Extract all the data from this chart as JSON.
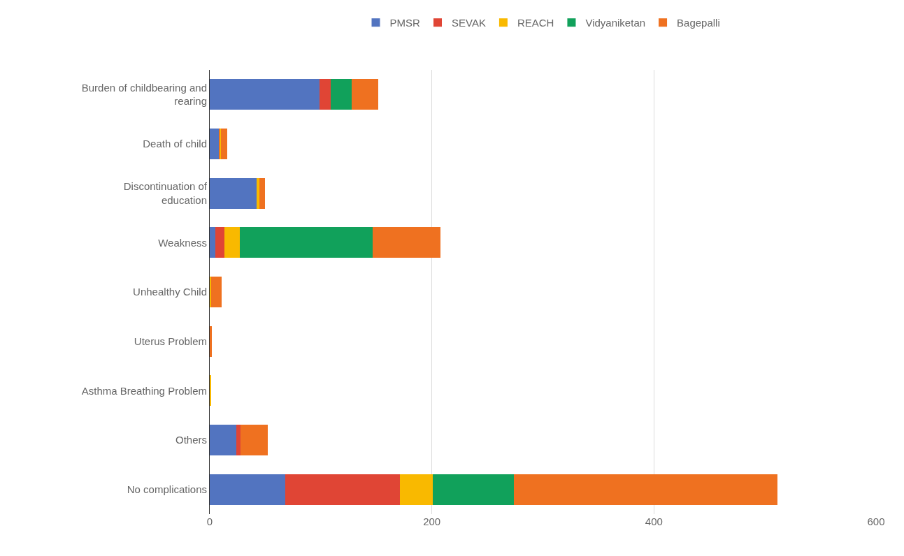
{
  "chart_data": {
    "type": "bar",
    "orientation": "horizontal",
    "stacked": true,
    "categories": [
      "Burden of childbearing and rearing",
      "Death of child",
      "Discontinuation of education",
      "Weakness",
      "Unhealthy Child",
      "Uterus Problem",
      "Asthma Breathing Problem",
      "Others",
      "No complications"
    ],
    "series": [
      {
        "name": "PMSR",
        "color": "#5274c0",
        "values": [
          99,
          8,
          42,
          5,
          0,
          0,
          0,
          24,
          68
        ]
      },
      {
        "name": "SEVAK",
        "color": "#e04535",
        "values": [
          10,
          1,
          0,
          8,
          0,
          0,
          0,
          4,
          103
        ]
      },
      {
        "name": "REACH",
        "color": "#f9b900",
        "values": [
          0,
          1,
          3,
          14,
          1,
          0,
          1,
          0,
          30
        ]
      },
      {
        "name": "Vidyaniketan",
        "color": "#11a15b",
        "values": [
          19,
          0,
          0,
          120,
          0,
          0,
          0,
          0,
          73
        ]
      },
      {
        "name": "Bagepalli",
        "color": "#ef7120",
        "values": [
          24,
          6,
          5,
          61,
          10,
          2,
          0,
          24,
          237
        ]
      }
    ],
    "xlim": [
      0,
      600
    ],
    "xticks": [
      0,
      200,
      400,
      600
    ],
    "grid": "x",
    "legend": "top"
  }
}
